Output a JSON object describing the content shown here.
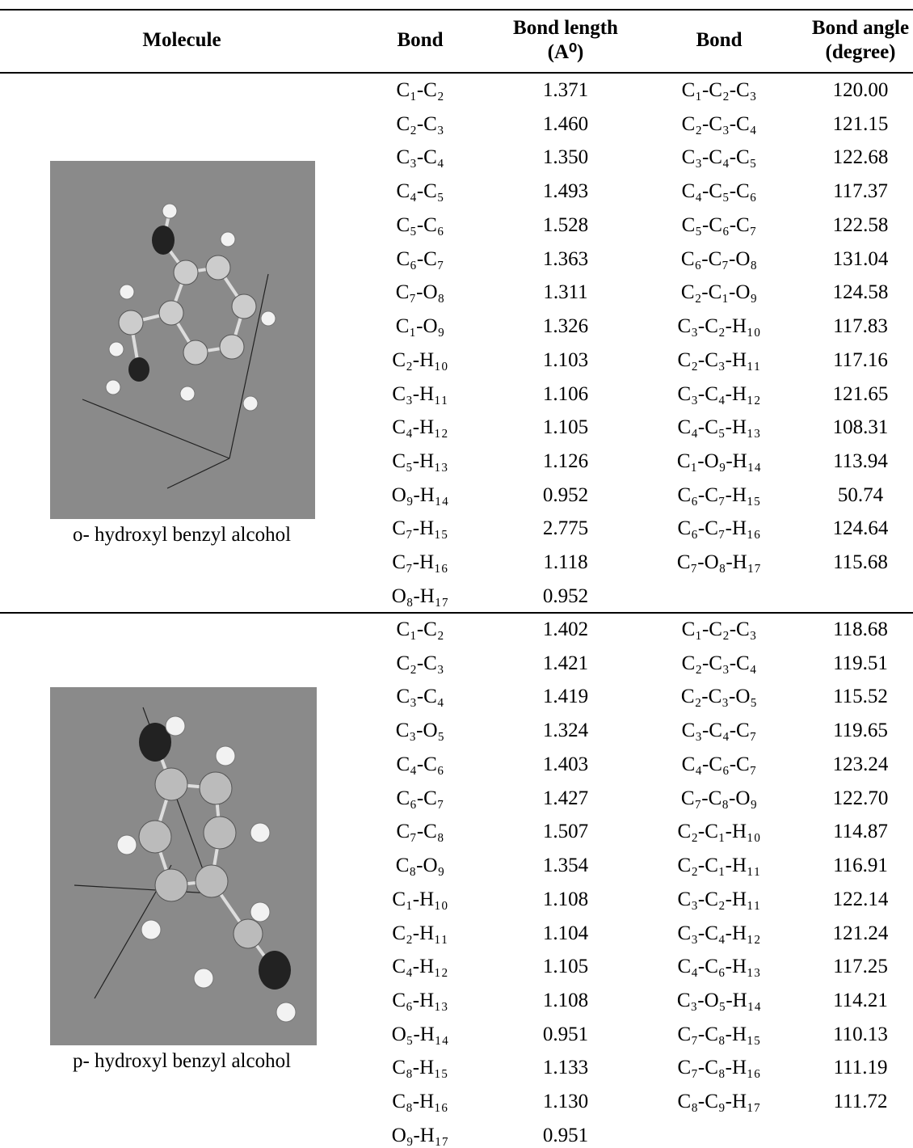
{
  "table": {
    "header": [
      "Molecule",
      "Bond",
      "Bond length (A⁰)",
      "Bond",
      "Bond angle (degree)"
    ],
    "groups": [
      {
        "molecule": "o- hydroxyl benzyl alcohol",
        "rows": [
          [
            "C₁-C₂",
            "1.371",
            "C₁-C₂-C₃",
            "120.00"
          ],
          [
            "C₂-C₃",
            "1.460",
            "C₂-C₃-C₄",
            "121.15"
          ],
          [
            "C₃-C₄",
            "1.350",
            "C₃-C₄-C₅",
            "122.68"
          ],
          [
            "C₄-C₅",
            "1.493",
            "C₄-C₅-C₆",
            "117.37"
          ],
          [
            "C₅-C₆",
            "1.528",
            "C₅-C₆-C₇",
            "122.58"
          ],
          [
            "C₆-C₇",
            "1.363",
            "C₆-C₇-O₈",
            "131.04"
          ],
          [
            "C₇-O₈",
            "1.311",
            "C₂-C₁-O₉",
            "124.58"
          ],
          [
            "C₁-O₉",
            "1.326",
            "C₃-C₂-H₁₀",
            "117.83"
          ],
          [
            "C₂-H₁₀",
            "1.103",
            "C₂-C₃-H₁₁",
            "117.16"
          ],
          [
            "C₃-H₁₁",
            "1.106",
            "C₃-C₄-H₁₂",
            "121.65"
          ],
          [
            "C₄-H₁₂",
            "1.105",
            "C₄-C₅-H₁₃",
            "108.31"
          ],
          [
            "C₅-H₁₃",
            "1.126",
            "C₁-O₉-H₁₄",
            "113.94"
          ],
          [
            "O₉-H₁₄",
            "0.952",
            "C₆-C₇-H₁₅",
            "50.74"
          ],
          [
            "C₇-H₁₅",
            "2.775",
            "C₆-C₇-H₁₆",
            "124.64"
          ],
          [
            "C₇-H₁₆",
            "1.118",
            "C₇-O₈-H₁₇",
            "115.68"
          ],
          [
            "O₈-H₁₇",
            "0.952"
          ]
        ]
      },
      {
        "molecule": "p- hydroxyl benzyl alcohol",
        "rows": [
          [
            "C₁-C₂",
            "1.402",
            "C₁-C₂-C₃",
            "118.68"
          ],
          [
            "C₂-C₃",
            "1.421",
            "C₂-C₃-C₄",
            "119.51"
          ],
          [
            "C₃-C₄",
            "1.419",
            "C₂-C₃-O₅",
            "115.52"
          ],
          [
            "C₃-O₅",
            "1.324",
            "C₃-C₄-C₇",
            "119.65"
          ],
          [
            "C₄-C₆",
            "1.403",
            "C₄-C₆-C₇",
            "123.24"
          ],
          [
            "C₆-C₇",
            "1.427",
            "C₇-C₈-O₉",
            "122.70"
          ],
          [
            "C₇-C₈",
            "1.507",
            "C₂-C₁-H₁₀",
            "114.87"
          ],
          [
            "C₈-O₉",
            "1.354",
            "C₂-C₁-H₁₁",
            "116.91"
          ],
          [
            "C₁-H₁₀",
            "1.108",
            "C₃-C₂-H₁₁",
            "122.14"
          ],
          [
            "C₂-H₁₁",
            "1.104",
            "C₃-C₄-H₁₂",
            "121.24"
          ],
          [
            "C₄-H₁₂",
            "1.105",
            "C₄-C₆-H₁₃",
            "117.25"
          ],
          [
            "C₆-H₁₃",
            "1.108",
            "C₃-O₅-H₁₄",
            "114.21"
          ],
          [
            "O₅-H₁₄",
            "0.951",
            "C₇-C₈-H₁₅",
            "110.13"
          ],
          [
            "C₈-H₁₅",
            "1.133",
            "C₇-C₈-H₁₆",
            "111.19"
          ],
          [
            "C₈-H₁₆",
            "1.130",
            "C₈-C₉-H₁₇",
            "111.72"
          ],
          [
            "O₉-H₁₇",
            "0.951"
          ]
        ]
      }
    ]
  }
}
